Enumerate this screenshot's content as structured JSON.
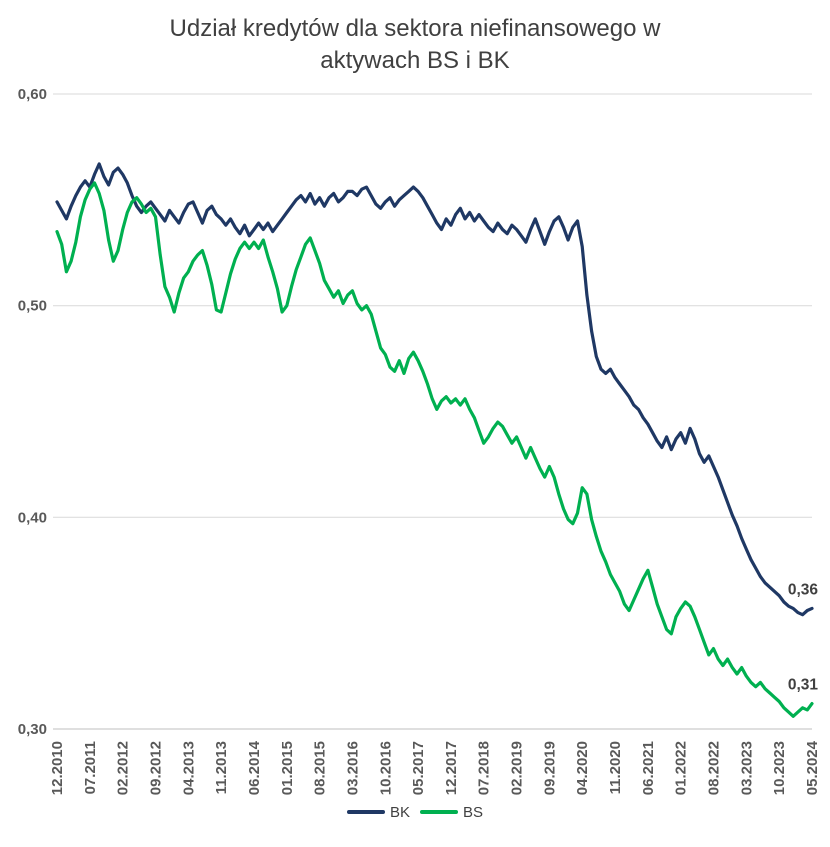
{
  "chart_data": {
    "type": "line",
    "title": "Udział kredytów dla sektora niefinansowego w aktywach BS i BK",
    "ylim": [
      0.3,
      0.6
    ],
    "grid": true,
    "legend_position": "bottom",
    "colors": {
      "grid_line": "#D9D9D9",
      "axis_line": "#BFBFBF",
      "tick_text": "#595959",
      "label_text": "#404040"
    },
    "y_ticks": [
      {
        "label": "0,60",
        "value": 0.6
      },
      {
        "label": "0,50",
        "value": 0.5
      },
      {
        "label": "0,40",
        "value": 0.4
      },
      {
        "label": "0,30",
        "value": 0.3
      }
    ],
    "tick_step": 7,
    "x_tick_labels": [
      "12.2010",
      "07.2011",
      "02.2012",
      "09.2012",
      "04.2013",
      "11.2013",
      "06.2014",
      "01.2015",
      "08.2015",
      "03.2016",
      "10.2016",
      "05.2017",
      "12.2017",
      "07.2018",
      "02.2019",
      "09.2019",
      "04.2020",
      "11.2020",
      "06.2021",
      "01.2022",
      "08.2022",
      "03.2023",
      "10.2023",
      "05.2024"
    ],
    "x_frequency": "monthly",
    "series": [
      {
        "name": "BK",
        "color": "#1F3864",
        "end_label": "0,36",
        "values": [
          0.549,
          0.545,
          0.541,
          0.547,
          0.552,
          0.556,
          0.559,
          0.556,
          0.562,
          0.567,
          0.561,
          0.557,
          0.563,
          0.565,
          0.562,
          0.558,
          0.552,
          0.547,
          0.544,
          0.547,
          0.549,
          0.546,
          0.543,
          0.54,
          0.545,
          0.542,
          0.539,
          0.544,
          0.548,
          0.549,
          0.544,
          0.539,
          0.545,
          0.547,
          0.543,
          0.541,
          0.538,
          0.541,
          0.537,
          0.534,
          0.538,
          0.533,
          0.536,
          0.539,
          0.536,
          0.539,
          0.535,
          0.538,
          0.541,
          0.544,
          0.547,
          0.55,
          0.552,
          0.549,
          0.553,
          0.548,
          0.551,
          0.547,
          0.551,
          0.553,
          0.549,
          0.551,
          0.554,
          0.554,
          0.552,
          0.555,
          0.556,
          0.552,
          0.548,
          0.546,
          0.549,
          0.551,
          0.547,
          0.55,
          0.552,
          0.554,
          0.556,
          0.554,
          0.551,
          0.547,
          0.543,
          0.539,
          0.536,
          0.541,
          0.538,
          0.543,
          0.546,
          0.541,
          0.544,
          0.54,
          0.543,
          0.54,
          0.537,
          0.535,
          0.539,
          0.536,
          0.534,
          0.538,
          0.536,
          0.533,
          0.53,
          0.536,
          0.541,
          0.535,
          0.529,
          0.535,
          0.54,
          0.542,
          0.537,
          0.531,
          0.537,
          0.54,
          0.528,
          0.505,
          0.488,
          0.476,
          0.47,
          0.468,
          0.47,
          0.466,
          0.463,
          0.46,
          0.457,
          0.453,
          0.451,
          0.447,
          0.444,
          0.44,
          0.436,
          0.433,
          0.438,
          0.432,
          0.437,
          0.44,
          0.435,
          0.442,
          0.437,
          0.43,
          0.426,
          0.429,
          0.424,
          0.419,
          0.413,
          0.407,
          0.401,
          0.396,
          0.39,
          0.385,
          0.38,
          0.376,
          0.372,
          0.369,
          0.367,
          0.365,
          0.363,
          0.36,
          0.358,
          0.357,
          0.355,
          0.354,
          0.356,
          0.357
        ]
      },
      {
        "name": "BS",
        "color": "#00B050",
        "end_label": "0,31",
        "values": [
          0.535,
          0.529,
          0.516,
          0.521,
          0.53,
          0.542,
          0.55,
          0.555,
          0.558,
          0.553,
          0.545,
          0.531,
          0.521,
          0.526,
          0.536,
          0.544,
          0.549,
          0.551,
          0.548,
          0.544,
          0.546,
          0.542,
          0.524,
          0.509,
          0.504,
          0.497,
          0.506,
          0.513,
          0.516,
          0.521,
          0.524,
          0.526,
          0.519,
          0.51,
          0.498,
          0.497,
          0.506,
          0.515,
          0.522,
          0.527,
          0.53,
          0.527,
          0.53,
          0.527,
          0.531,
          0.523,
          0.516,
          0.508,
          0.497,
          0.5,
          0.509,
          0.517,
          0.523,
          0.529,
          0.532,
          0.526,
          0.52,
          0.512,
          0.508,
          0.504,
          0.507,
          0.501,
          0.505,
          0.507,
          0.501,
          0.498,
          0.5,
          0.496,
          0.488,
          0.48,
          0.477,
          0.471,
          0.469,
          0.474,
          0.468,
          0.475,
          0.478,
          0.474,
          0.469,
          0.463,
          0.456,
          0.451,
          0.455,
          0.457,
          0.454,
          0.456,
          0.453,
          0.456,
          0.451,
          0.447,
          0.441,
          0.435,
          0.438,
          0.442,
          0.445,
          0.443,
          0.439,
          0.435,
          0.438,
          0.433,
          0.428,
          0.433,
          0.428,
          0.423,
          0.419,
          0.424,
          0.419,
          0.411,
          0.404,
          0.399,
          0.397,
          0.402,
          0.414,
          0.411,
          0.399,
          0.391,
          0.384,
          0.379,
          0.373,
          0.369,
          0.365,
          0.359,
          0.356,
          0.361,
          0.366,
          0.371,
          0.375,
          0.367,
          0.359,
          0.353,
          0.347,
          0.345,
          0.353,
          0.357,
          0.36,
          0.358,
          0.353,
          0.347,
          0.341,
          0.335,
          0.338,
          0.333,
          0.33,
          0.333,
          0.329,
          0.326,
          0.329,
          0.325,
          0.322,
          0.32,
          0.322,
          0.319,
          0.317,
          0.315,
          0.313,
          0.31,
          0.308,
          0.306,
          0.308,
          0.31,
          0.309,
          0.312
        ]
      }
    ]
  }
}
